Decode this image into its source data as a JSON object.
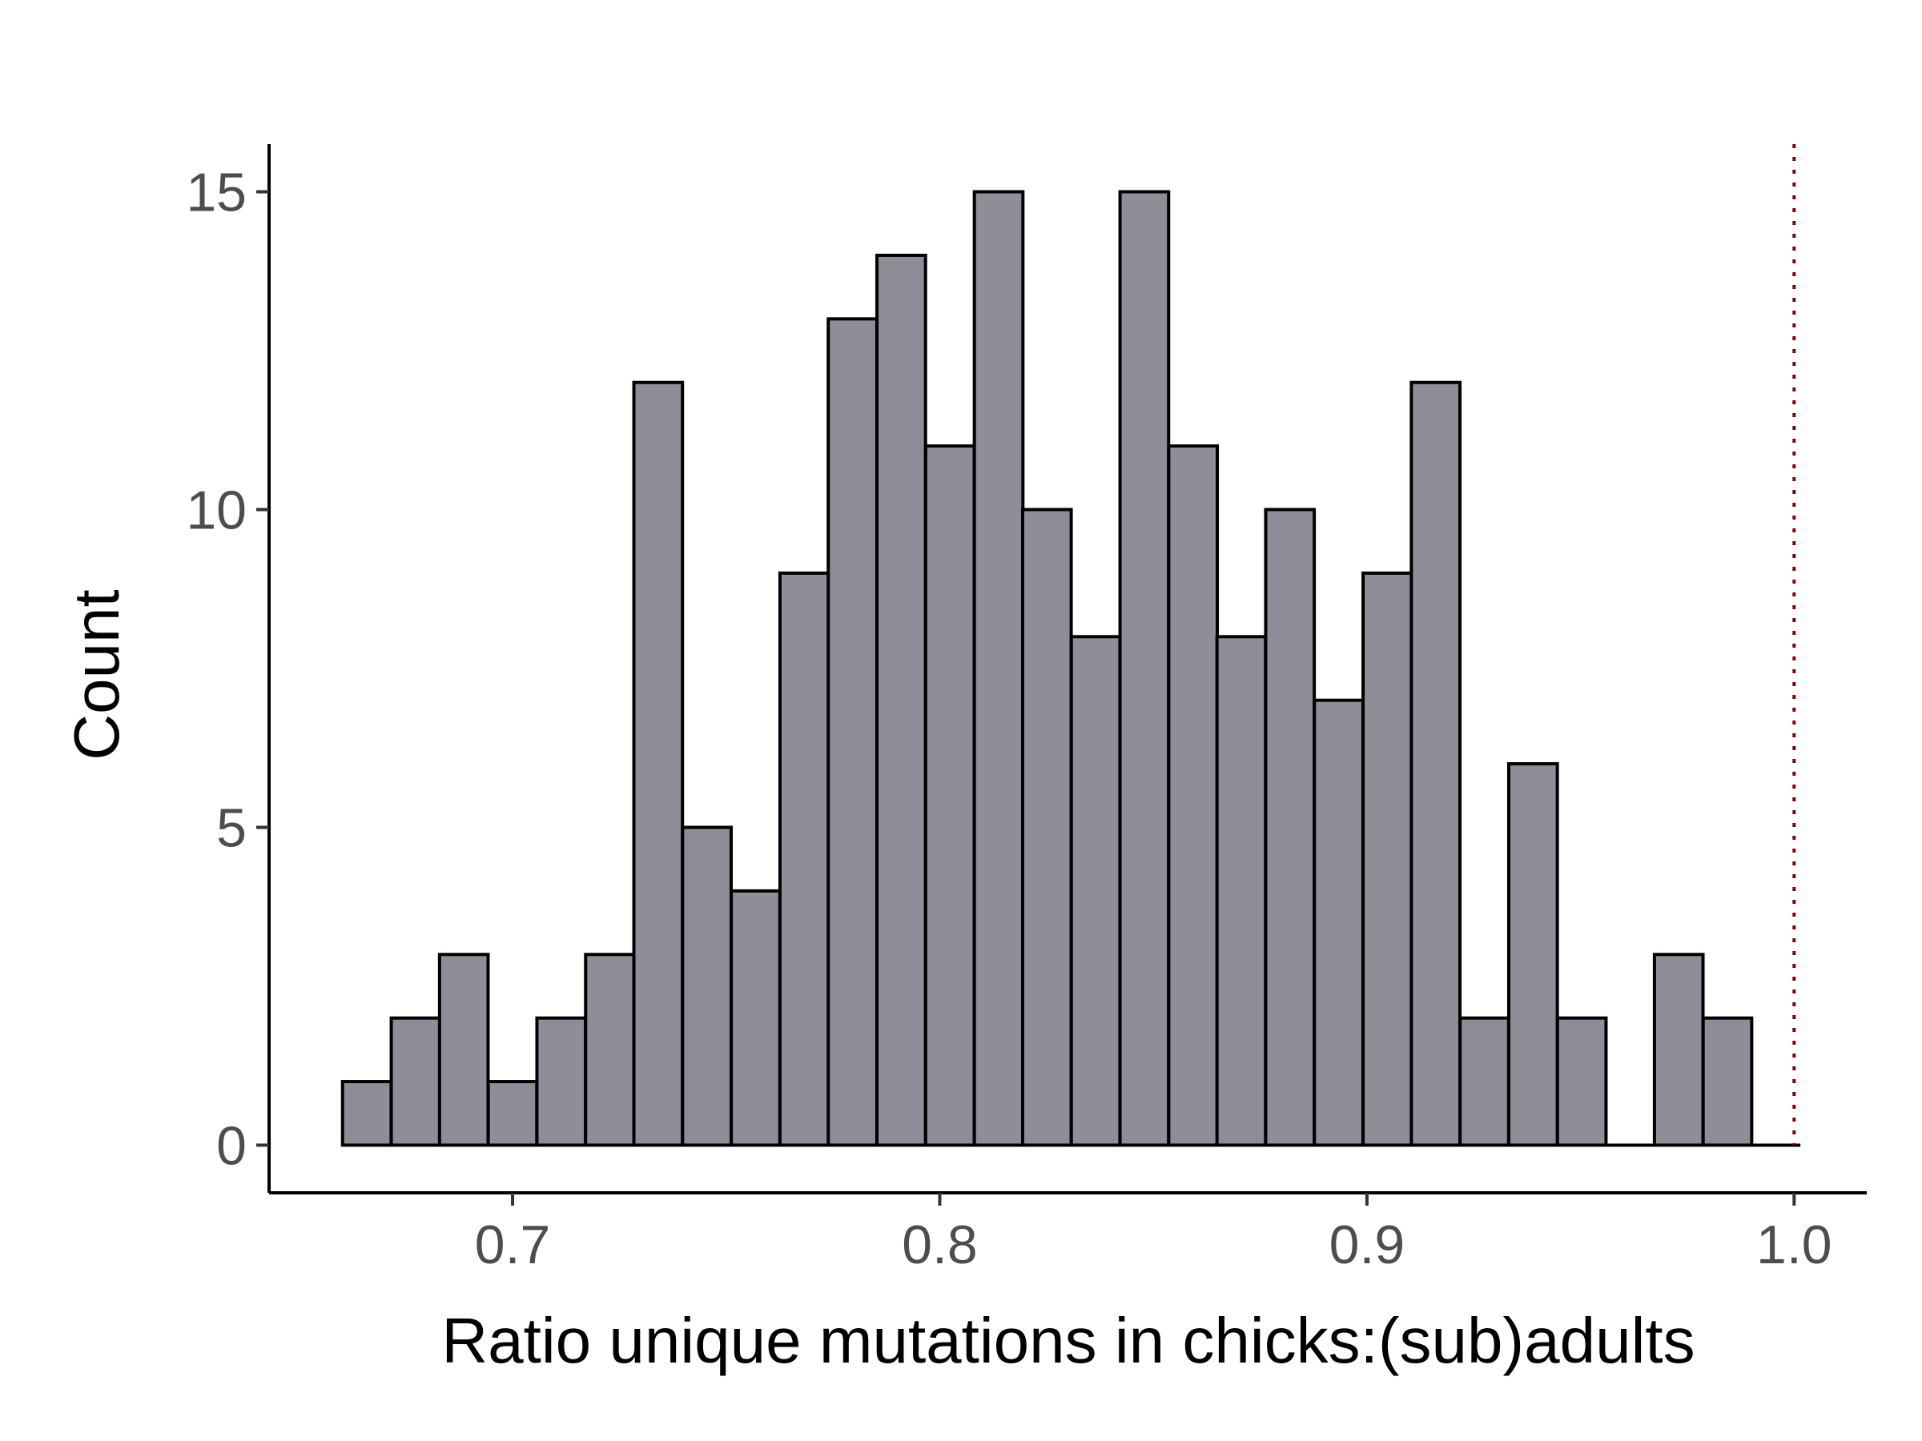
{
  "chart_data": {
    "type": "bar",
    "title": "",
    "xlabel": "Ratio unique mutations in chicks:(sub)adults",
    "ylabel": "Count",
    "xlim": [
      0.643,
      1.017
    ],
    "ylim": [
      -0.75,
      15.75
    ],
    "x_ticks": [
      0.7,
      0.8,
      0.9,
      1.0
    ],
    "x_tick_labels": [
      "0.7",
      "0.8",
      "0.9",
      "1.0"
    ],
    "y_ticks": [
      0,
      5,
      10,
      15
    ],
    "y_tick_labels": [
      "0",
      "5",
      "10",
      "15"
    ],
    "bin_width": 0.01137,
    "bins": [
      {
        "x0": 0.6602,
        "count": 1
      },
      {
        "x0": 0.6716,
        "count": 2
      },
      {
        "x0": 0.6829,
        "count": 3
      },
      {
        "x0": 0.6943,
        "count": 1
      },
      {
        "x0": 0.7057,
        "count": 2
      },
      {
        "x0": 0.7171,
        "count": 3
      },
      {
        "x0": 0.7284,
        "count": 12
      },
      {
        "x0": 0.7398,
        "count": 5
      },
      {
        "x0": 0.7512,
        "count": 4
      },
      {
        "x0": 0.7626,
        "count": 9
      },
      {
        "x0": 0.7739,
        "count": 13
      },
      {
        "x0": 0.7853,
        "count": 14
      },
      {
        "x0": 0.7967,
        "count": 11
      },
      {
        "x0": 0.8081,
        "count": 15
      },
      {
        "x0": 0.8194,
        "count": 10
      },
      {
        "x0": 0.8308,
        "count": 8
      },
      {
        "x0": 0.8422,
        "count": 15
      },
      {
        "x0": 0.8536,
        "count": 11
      },
      {
        "x0": 0.8649,
        "count": 8
      },
      {
        "x0": 0.8763,
        "count": 10
      },
      {
        "x0": 0.8877,
        "count": 7
      },
      {
        "x0": 0.8991,
        "count": 9
      },
      {
        "x0": 0.9104,
        "count": 12
      },
      {
        "x0": 0.9218,
        "count": 2
      },
      {
        "x0": 0.9332,
        "count": 6
      },
      {
        "x0": 0.9446,
        "count": 2
      },
      {
        "x0": 0.9559,
        "count": 0
      },
      {
        "x0": 0.9673,
        "count": 3
      },
      {
        "x0": 0.9787,
        "count": 2
      },
      {
        "x0": 0.9901,
        "count": 0
      }
    ],
    "reference_line": {
      "x": 1.0,
      "style": "dotted",
      "color": "#8b0000"
    },
    "bar_fill": "#8e8e98",
    "bar_stroke": "#000000",
    "grid": false,
    "legend": "none"
  }
}
